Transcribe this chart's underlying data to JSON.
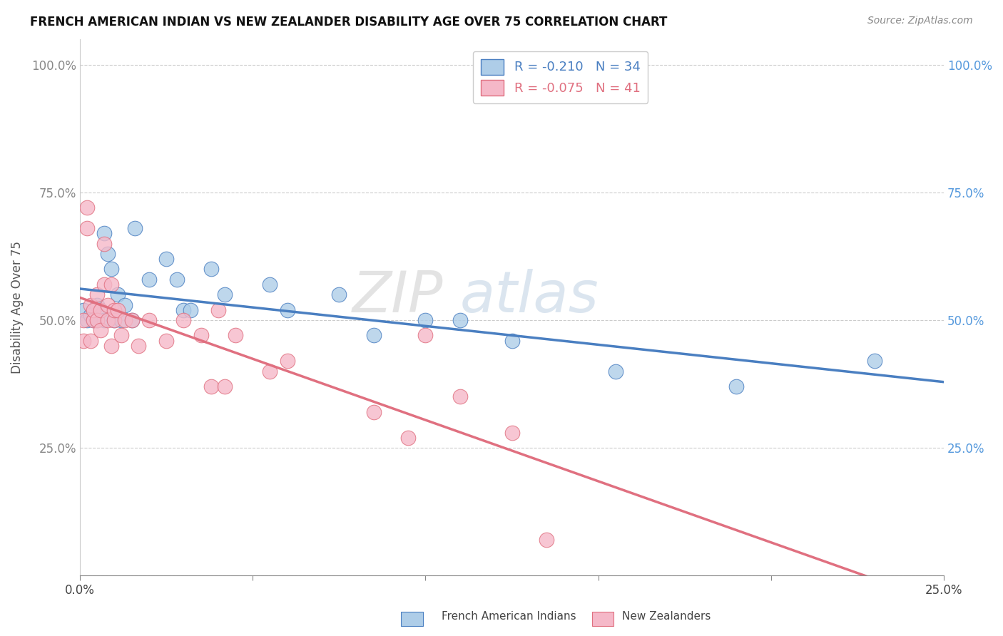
{
  "title": "FRENCH AMERICAN INDIAN VS NEW ZEALANDER DISABILITY AGE OVER 75 CORRELATION CHART",
  "source": "Source: ZipAtlas.com",
  "ylabel": "Disability Age Over 75",
  "xlim": [
    0.0,
    0.25
  ],
  "ylim": [
    0.0,
    1.05
  ],
  "xticks": [
    0.0,
    0.05,
    0.1,
    0.15,
    0.2,
    0.25
  ],
  "xtick_labels": [
    "0.0%",
    "",
    "",
    "",
    "",
    "25.0%"
  ],
  "yticks": [
    0.0,
    0.25,
    0.5,
    0.75,
    1.0
  ],
  "ytick_labels": [
    "",
    "25.0%",
    "50.0%",
    "75.0%",
    "100.0%"
  ],
  "legend_r_blue": "-0.210",
  "legend_n_blue": "34",
  "legend_r_pink": "-0.075",
  "legend_n_pink": "41",
  "legend_label_blue": "French American Indians",
  "legend_label_pink": "New Zealanders",
  "blue_color": "#aecde8",
  "pink_color": "#f5b8c8",
  "blue_line_color": "#4a7fc1",
  "pink_line_color": "#e07080",
  "watermark_zip": "ZIP",
  "watermark_atlas": "atlas",
  "background_color": "#ffffff",
  "grid_color": "#cccccc",
  "blue_points_x": [
    0.001,
    0.002,
    0.003,
    0.004,
    0.005,
    0.005,
    0.006,
    0.007,
    0.007,
    0.008,
    0.009,
    0.01,
    0.011,
    0.012,
    0.013,
    0.015,
    0.016,
    0.02,
    0.025,
    0.028,
    0.03,
    0.032,
    0.038,
    0.042,
    0.055,
    0.06,
    0.075,
    0.085,
    0.1,
    0.11,
    0.125,
    0.155,
    0.19,
    0.23
  ],
  "blue_points_y": [
    0.52,
    0.5,
    0.51,
    0.5,
    0.53,
    0.5,
    0.52,
    0.67,
    0.5,
    0.63,
    0.6,
    0.5,
    0.55,
    0.5,
    0.53,
    0.5,
    0.68,
    0.58,
    0.62,
    0.58,
    0.52,
    0.52,
    0.6,
    0.55,
    0.57,
    0.52,
    0.55,
    0.47,
    0.5,
    0.5,
    0.46,
    0.4,
    0.37,
    0.42
  ],
  "pink_points_x": [
    0.001,
    0.001,
    0.002,
    0.002,
    0.003,
    0.003,
    0.004,
    0.004,
    0.005,
    0.005,
    0.006,
    0.006,
    0.007,
    0.007,
    0.008,
    0.008,
    0.009,
    0.009,
    0.01,
    0.01,
    0.011,
    0.012,
    0.013,
    0.015,
    0.017,
    0.02,
    0.025,
    0.03,
    0.035,
    0.038,
    0.04,
    0.042,
    0.045,
    0.055,
    0.06,
    0.085,
    0.095,
    0.1,
    0.11,
    0.125,
    0.135
  ],
  "pink_points_y": [
    0.5,
    0.46,
    0.68,
    0.72,
    0.46,
    0.53,
    0.5,
    0.52,
    0.5,
    0.55,
    0.52,
    0.48,
    0.57,
    0.65,
    0.53,
    0.5,
    0.57,
    0.45,
    0.5,
    0.52,
    0.52,
    0.47,
    0.5,
    0.5,
    0.45,
    0.5,
    0.46,
    0.5,
    0.47,
    0.37,
    0.52,
    0.37,
    0.47,
    0.4,
    0.42,
    0.32,
    0.27,
    0.47,
    0.35,
    0.28,
    0.07
  ]
}
